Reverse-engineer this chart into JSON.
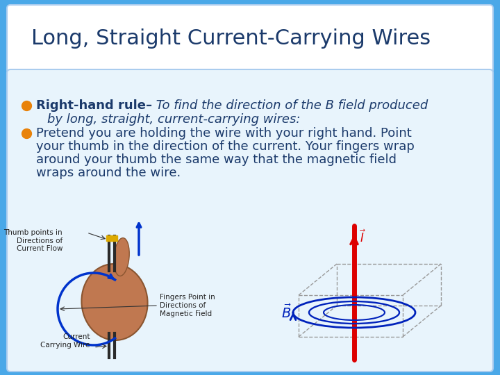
{
  "title": "Long, Straight Current-Carrying Wires",
  "title_color": "#1b3a6b",
  "title_fontsize": 22,
  "background_outer": "#4aa8e8",
  "title_box_color": "#ffffff",
  "content_box_color": "#e8f4fc",
  "bullet_color": "#e8820a",
  "text_color": "#1b3a6b",
  "text_fontsize": 13,
  "bold_fontsize": 13,
  "bullet1_bold": "Right-hand rule–",
  "bullet1_italic_line1": " To find the direction of the B field produced",
  "bullet1_italic_line2": "by long, straight, current-carrying wires:",
  "bullet2_lines": [
    "Pretend you are holding the wire with your right hand. Point",
    "your thumb in the direction of the current. Your fingers wrap",
    "around your thumb the same way that the magnetic field",
    "wraps around the wire."
  ],
  "label_thumb": "Thumb points in\nDirections of\nCurrent Flow",
  "label_fingers": "Fingers Point in\nDirections of\nMagnetic Field",
  "label_wire": "Current\nCarrying Wire"
}
